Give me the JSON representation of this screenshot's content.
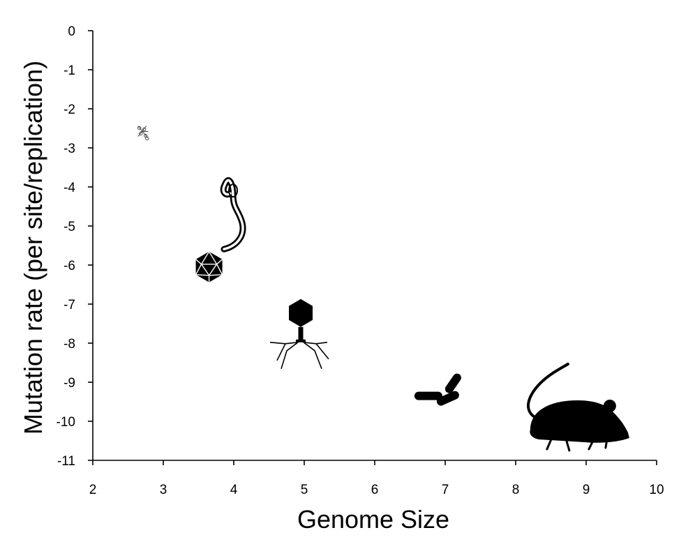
{
  "chart_data": {
    "type": "scatter",
    "title": "",
    "xlabel": "Genome Size",
    "ylabel": "Mutation rate (per site/replication)",
    "xlim": [
      2,
      10
    ],
    "ylim": [
      -11,
      0
    ],
    "x_ticks": [
      2,
      3,
      4,
      5,
      6,
      7,
      8,
      9,
      10
    ],
    "y_ticks": [
      0,
      -1,
      -2,
      -3,
      -4,
      -5,
      -6,
      -7,
      -8,
      -9,
      -10,
      -11
    ],
    "grid": false,
    "legend": "none",
    "points": [
      {
        "marker": "viroid-icon",
        "x": 2.7,
        "y": -2.6
      },
      {
        "marker": "filovirus-icon",
        "x": 3.95,
        "y": -4.7
      },
      {
        "marker": "icosahedral-virus-icon",
        "x": 3.65,
        "y": -6.05
      },
      {
        "marker": "bacteriophage-icon",
        "x": 4.95,
        "y": -7.8
      },
      {
        "marker": "bacteria-icon",
        "x": 6.9,
        "y": -9.35
      },
      {
        "marker": "mouse-icon",
        "x": 8.9,
        "y": -10.0
      }
    ],
    "colors": {
      "axis": "#000000",
      "marker": "#000000"
    }
  }
}
